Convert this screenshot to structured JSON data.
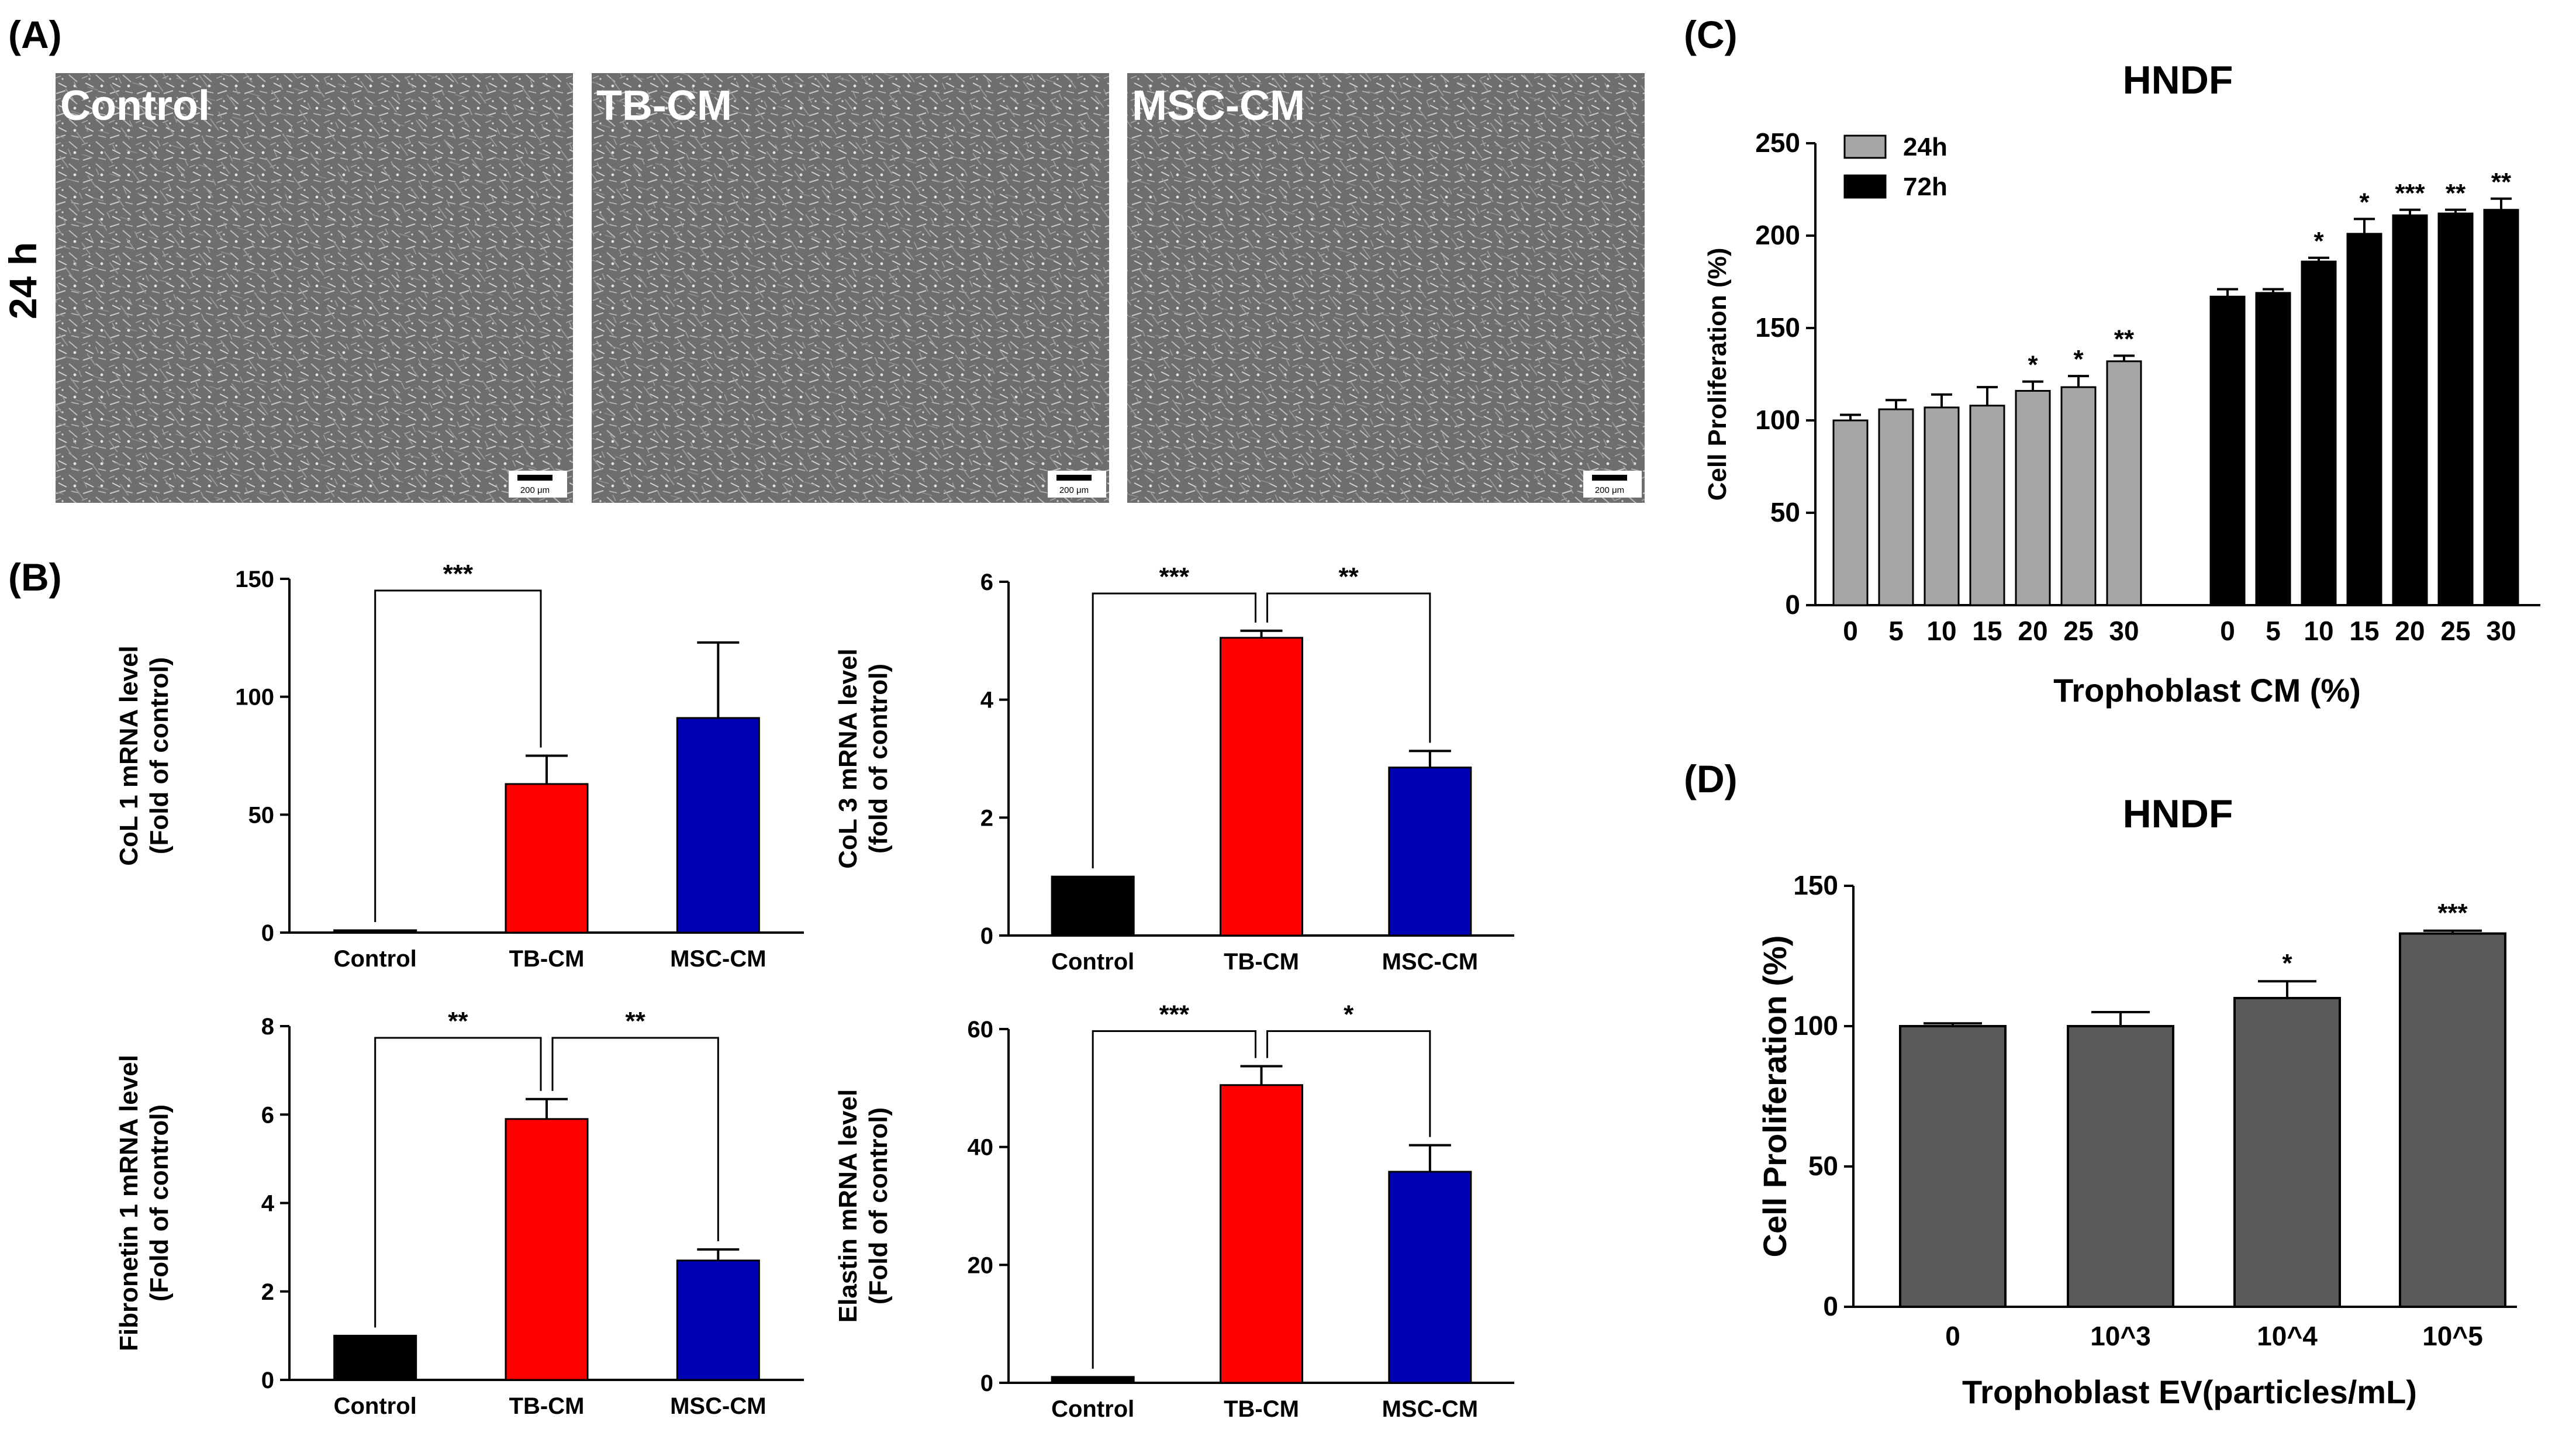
{
  "panel_labels": {
    "a": "(A)",
    "b": "(B)",
    "c": "(C)",
    "d": "(D)"
  },
  "micrographs": {
    "row_label": "24 h",
    "scale_bar": "200 μm",
    "images": [
      {
        "label": "Control"
      },
      {
        "label": "TB-CM"
      },
      {
        "label": "MSC-CM"
      }
    ]
  },
  "colors": {
    "control": "#000000",
    "tbcm": "#ff0000",
    "msccm": "#0000b4",
    "gray24": "#a6a6a6",
    "black72": "#000000",
    "ev": "#595959"
  },
  "chart_data": [
    {
      "id": "col1",
      "type": "bar",
      "title": "",
      "xlabel": "",
      "ylabel": [
        "CoL 1 mRNA level",
        "(Fold of control)"
      ],
      "categories": [
        "Control",
        "TB-CM",
        "MSC-CM"
      ],
      "values": [
        1,
        63,
        91
      ],
      "errors": [
        0,
        12,
        32
      ],
      "colors": [
        "#000000",
        "#ff0000",
        "#0000b4"
      ],
      "ylim": [
        0,
        150
      ],
      "yticks": [
        0,
        50,
        100,
        150
      ],
      "significance": [
        {
          "from": 0,
          "to": 1,
          "label": "***"
        }
      ]
    },
    {
      "id": "col3",
      "type": "bar",
      "title": "",
      "xlabel": "",
      "ylabel": [
        "CoL 3 mRNA level",
        "(fold of control)"
      ],
      "categories": [
        "Control",
        "TB-CM",
        "MSC-CM"
      ],
      "values": [
        1,
        5.05,
        2.85
      ],
      "errors": [
        0,
        0.12,
        0.28
      ],
      "colors": [
        "#000000",
        "#ff0000",
        "#0000b4"
      ],
      "ylim": [
        0,
        6
      ],
      "yticks": [
        0,
        2,
        4,
        6
      ],
      "significance": [
        {
          "from": 0,
          "to": 1,
          "label": "***"
        },
        {
          "from": 1,
          "to": 2,
          "label": "**"
        }
      ]
    },
    {
      "id": "fn1",
      "type": "bar",
      "title": "",
      "xlabel": "",
      "ylabel": [
        "Fibronetin 1 mRNA level",
        "(Fold of control)"
      ],
      "categories": [
        "Control",
        "TB-CM",
        "MSC-CM"
      ],
      "values": [
        1,
        5.9,
        2.7
      ],
      "errors": [
        0,
        0.45,
        0.25
      ],
      "colors": [
        "#000000",
        "#ff0000",
        "#0000b4"
      ],
      "ylim": [
        0,
        8
      ],
      "yticks": [
        0,
        2,
        4,
        6,
        8
      ],
      "significance": [
        {
          "from": 0,
          "to": 1,
          "label": "**"
        },
        {
          "from": 1,
          "to": 2,
          "label": "**"
        }
      ]
    },
    {
      "id": "elastin",
      "type": "bar",
      "title": "",
      "xlabel": "",
      "ylabel": [
        "Elastin mRNA level",
        "(Fold of control)"
      ],
      "categories": [
        "Control",
        "TB-CM",
        "MSC-CM"
      ],
      "values": [
        1,
        50.5,
        35.8
      ],
      "errors": [
        0,
        3.2,
        4.5
      ],
      "colors": [
        "#000000",
        "#ff0000",
        "#0000b4"
      ],
      "ylim": [
        0,
        60
      ],
      "yticks": [
        0,
        20,
        40,
        60
      ],
      "significance": [
        {
          "from": 0,
          "to": 1,
          "label": "***"
        },
        {
          "from": 1,
          "to": 2,
          "label": "*"
        }
      ]
    },
    {
      "id": "hndf_cm",
      "type": "bar",
      "title": "HNDF",
      "xlabel": "Trophoblast CM (%)",
      "ylabel": [
        "Cell Proliferation (%)"
      ],
      "ylim": [
        0,
        250
      ],
      "yticks": [
        0,
        50,
        100,
        150,
        200,
        250
      ],
      "legend": [
        "24h",
        "72h"
      ],
      "legend_position": "top-left",
      "series": [
        {
          "name": "24h",
          "color": "#a6a6a6",
          "categories": [
            "0",
            "5",
            "10",
            "15",
            "20",
            "25",
            "30"
          ],
          "values": [
            100,
            106,
            107,
            108,
            116,
            118,
            132
          ],
          "errors": [
            3,
            5,
            7,
            10,
            5,
            6,
            3
          ],
          "sig": [
            "",
            "",
            "",
            "",
            "*",
            "*",
            "**"
          ]
        },
        {
          "name": "72h",
          "color": "#000000",
          "categories": [
            "0",
            "5",
            "10",
            "15",
            "20",
            "25",
            "30"
          ],
          "values": [
            167,
            169,
            186,
            201,
            211,
            212,
            214
          ],
          "errors": [
            4,
            2,
            2,
            8,
            3,
            2,
            6
          ],
          "sig": [
            "",
            "",
            "*",
            "*",
            "***",
            "**",
            "**"
          ]
        }
      ]
    },
    {
      "id": "hndf_ev",
      "type": "bar",
      "title": "HNDF",
      "xlabel": "Trophoblast EV(particles/mL)",
      "ylabel": [
        "Cell Proliferation (%)"
      ],
      "categories": [
        "0",
        "10^3",
        "10^4",
        "10^5"
      ],
      "values": [
        100,
        100,
        110,
        133
      ],
      "errors": [
        1,
        5,
        6,
        1
      ],
      "colors": [
        "#595959",
        "#595959",
        "#595959",
        "#595959"
      ],
      "ylim": [
        0,
        150
      ],
      "yticks": [
        0,
        50,
        100,
        150
      ],
      "sig": [
        "",
        "",
        "*",
        "***"
      ]
    }
  ]
}
